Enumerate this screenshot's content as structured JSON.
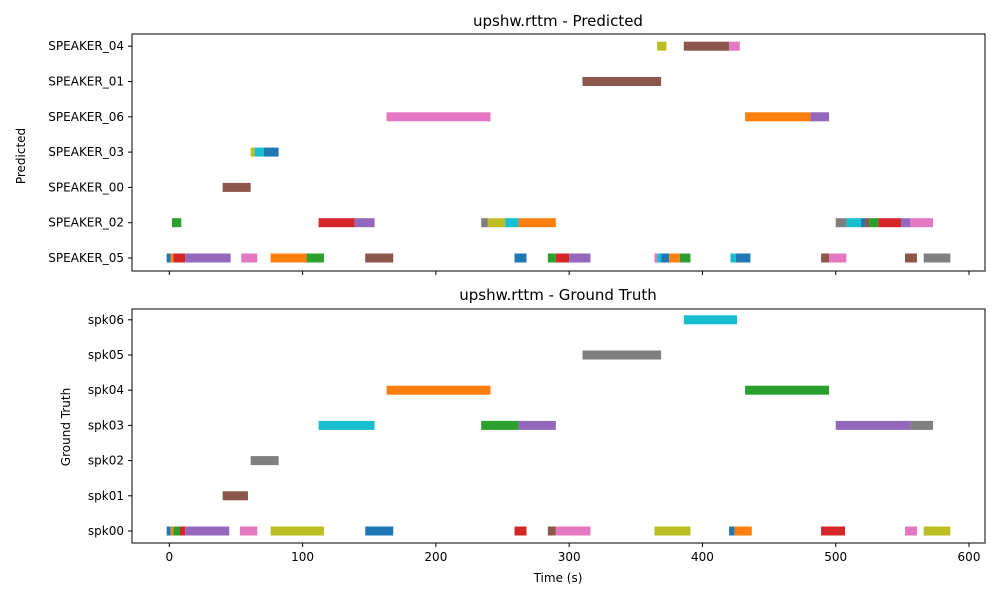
{
  "chart_data": [
    {
      "type": "broken_barh",
      "title": "upshw.rttm - Predicted",
      "ylabel": "Predicted",
      "xlabel": "",
      "xlim": [
        -28,
        612
      ],
      "xticks": [
        0,
        100,
        200,
        300,
        400,
        500,
        600
      ],
      "xticklabels_shown": false,
      "rows": [
        "SPEAKER_05",
        "SPEAKER_02",
        "SPEAKER_00",
        "SPEAKER_03",
        "SPEAKER_06",
        "SPEAKER_01",
        "SPEAKER_04"
      ],
      "segments": [
        {
          "row": "SPEAKER_05",
          "start": -2,
          "end": 1,
          "color": "#1f77b4"
        },
        {
          "row": "SPEAKER_05",
          "start": 1,
          "end": 3,
          "color": "#ff7f0e"
        },
        {
          "row": "SPEAKER_05",
          "start": 3,
          "end": 12,
          "color": "#d62728"
        },
        {
          "row": "SPEAKER_05",
          "start": 12,
          "end": 46,
          "color": "#9467bd"
        },
        {
          "row": "SPEAKER_05",
          "start": 54,
          "end": 66,
          "color": "#e377c2"
        },
        {
          "row": "SPEAKER_05",
          "start": 76,
          "end": 103,
          "color": "#ff7f0e"
        },
        {
          "row": "SPEAKER_05",
          "start": 103,
          "end": 116,
          "color": "#2ca02c"
        },
        {
          "row": "SPEAKER_05",
          "start": 147,
          "end": 168,
          "color": "#8c564b"
        },
        {
          "row": "SPEAKER_05",
          "start": 259,
          "end": 268,
          "color": "#1f77b4"
        },
        {
          "row": "SPEAKER_05",
          "start": 284,
          "end": 290,
          "color": "#2ca02c"
        },
        {
          "row": "SPEAKER_05",
          "start": 290,
          "end": 300,
          "color": "#d62728"
        },
        {
          "row": "SPEAKER_05",
          "start": 300,
          "end": 316,
          "color": "#9467bd"
        },
        {
          "row": "SPEAKER_05",
          "start": 364,
          "end": 366,
          "color": "#e377c2"
        },
        {
          "row": "SPEAKER_05",
          "start": 366,
          "end": 369,
          "color": "#17becf"
        },
        {
          "row": "SPEAKER_05",
          "start": 369,
          "end": 375,
          "color": "#1f77b4"
        },
        {
          "row": "SPEAKER_05",
          "start": 375,
          "end": 383,
          "color": "#ff7f0e"
        },
        {
          "row": "SPEAKER_05",
          "start": 383,
          "end": 391,
          "color": "#2ca02c"
        },
        {
          "row": "SPEAKER_05",
          "start": 421,
          "end": 425,
          "color": "#17becf"
        },
        {
          "row": "SPEAKER_05",
          "start": 425,
          "end": 436,
          "color": "#1f77b4"
        },
        {
          "row": "SPEAKER_05",
          "start": 489,
          "end": 495,
          "color": "#8c564b"
        },
        {
          "row": "SPEAKER_05",
          "start": 495,
          "end": 508,
          "color": "#e377c2"
        },
        {
          "row": "SPEAKER_05",
          "start": 552,
          "end": 561,
          "color": "#8c564b"
        },
        {
          "row": "SPEAKER_05",
          "start": 566,
          "end": 586,
          "color": "#7f7f7f"
        },
        {
          "row": "SPEAKER_02",
          "start": 2,
          "end": 9,
          "color": "#2ca02c"
        },
        {
          "row": "SPEAKER_02",
          "start": 112,
          "end": 139,
          "color": "#d62728"
        },
        {
          "row": "SPEAKER_02",
          "start": 139,
          "end": 154,
          "color": "#9467bd"
        },
        {
          "row": "SPEAKER_02",
          "start": 234,
          "end": 239,
          "color": "#7f7f7f"
        },
        {
          "row": "SPEAKER_02",
          "start": 239,
          "end": 252,
          "color": "#bcbd22"
        },
        {
          "row": "SPEAKER_02",
          "start": 252,
          "end": 262,
          "color": "#17becf"
        },
        {
          "row": "SPEAKER_02",
          "start": 262,
          "end": 290,
          "color": "#ff7f0e"
        },
        {
          "row": "SPEAKER_02",
          "start": 500,
          "end": 508,
          "color": "#7f7f7f"
        },
        {
          "row": "SPEAKER_02",
          "start": 508,
          "end": 519,
          "color": "#17becf"
        },
        {
          "row": "SPEAKER_02",
          "start": 519,
          "end": 522,
          "color": "#1f77b4"
        },
        {
          "row": "SPEAKER_02",
          "start": 522,
          "end": 525,
          "color": "#8c564b"
        },
        {
          "row": "SPEAKER_02",
          "start": 525,
          "end": 532,
          "color": "#2ca02c"
        },
        {
          "row": "SPEAKER_02",
          "start": 532,
          "end": 549,
          "color": "#d62728"
        },
        {
          "row": "SPEAKER_02",
          "start": 549,
          "end": 556,
          "color": "#9467bd"
        },
        {
          "row": "SPEAKER_02",
          "start": 556,
          "end": 573,
          "color": "#e377c2"
        },
        {
          "row": "SPEAKER_00",
          "start": 40,
          "end": 61,
          "color": "#8c564b"
        },
        {
          "row": "SPEAKER_03",
          "start": 61,
          "end": 64,
          "color": "#bcbd22"
        },
        {
          "row": "SPEAKER_03",
          "start": 64,
          "end": 71,
          "color": "#17becf"
        },
        {
          "row": "SPEAKER_03",
          "start": 71,
          "end": 82,
          "color": "#1f77b4"
        },
        {
          "row": "SPEAKER_06",
          "start": 163,
          "end": 241,
          "color": "#e377c2"
        },
        {
          "row": "SPEAKER_06",
          "start": 432,
          "end": 481,
          "color": "#ff7f0e"
        },
        {
          "row": "SPEAKER_06",
          "start": 481,
          "end": 495,
          "color": "#9467bd"
        },
        {
          "row": "SPEAKER_01",
          "start": 310,
          "end": 369,
          "color": "#8c564b"
        },
        {
          "row": "SPEAKER_04",
          "start": 366,
          "end": 373,
          "color": "#bcbd22"
        },
        {
          "row": "SPEAKER_04",
          "start": 386,
          "end": 420,
          "color": "#8c564b"
        },
        {
          "row": "SPEAKER_04",
          "start": 420,
          "end": 428,
          "color": "#e377c2"
        }
      ]
    },
    {
      "type": "broken_barh",
      "title": "upshw.rttm - Ground Truth",
      "ylabel": "Ground Truth",
      "xlabel": "Time (s)",
      "xlim": [
        -28,
        612
      ],
      "xticks": [
        0,
        100,
        200,
        300,
        400,
        500,
        600
      ],
      "xticklabels_shown": true,
      "rows": [
        "spk00",
        "spk01",
        "spk02",
        "spk03",
        "spk04",
        "spk05",
        "spk06"
      ],
      "segments": [
        {
          "row": "spk00",
          "start": -2,
          "end": 1,
          "color": "#1f77b4"
        },
        {
          "row": "spk00",
          "start": 1,
          "end": 3,
          "color": "#ff7f0e"
        },
        {
          "row": "spk00",
          "start": 3,
          "end": 8,
          "color": "#2ca02c"
        },
        {
          "row": "spk00",
          "start": 8,
          "end": 12,
          "color": "#d62728"
        },
        {
          "row": "spk00",
          "start": 12,
          "end": 45,
          "color": "#9467bd"
        },
        {
          "row": "spk00",
          "start": 53,
          "end": 66,
          "color": "#e377c2"
        },
        {
          "row": "spk00",
          "start": 76,
          "end": 116,
          "color": "#bcbd22"
        },
        {
          "row": "spk00",
          "start": 147,
          "end": 168,
          "color": "#1f77b4"
        },
        {
          "row": "spk00",
          "start": 259,
          "end": 268,
          "color": "#d62728"
        },
        {
          "row": "spk00",
          "start": 284,
          "end": 290,
          "color": "#8c564b"
        },
        {
          "row": "spk00",
          "start": 290,
          "end": 316,
          "color": "#e377c2"
        },
        {
          "row": "spk00",
          "start": 364,
          "end": 391,
          "color": "#bcbd22"
        },
        {
          "row": "spk00",
          "start": 420,
          "end": 424,
          "color": "#1f77b4"
        },
        {
          "row": "spk00",
          "start": 424,
          "end": 437,
          "color": "#ff7f0e"
        },
        {
          "row": "spk00",
          "start": 489,
          "end": 507,
          "color": "#d62728"
        },
        {
          "row": "spk00",
          "start": 552,
          "end": 561,
          "color": "#e377c2"
        },
        {
          "row": "spk00",
          "start": 566,
          "end": 586,
          "color": "#bcbd22"
        },
        {
          "row": "spk01",
          "start": 40,
          "end": 59,
          "color": "#8c564b"
        },
        {
          "row": "spk02",
          "start": 61,
          "end": 82,
          "color": "#7f7f7f"
        },
        {
          "row": "spk03",
          "start": 112,
          "end": 154,
          "color": "#17becf"
        },
        {
          "row": "spk03",
          "start": 234,
          "end": 262,
          "color": "#2ca02c"
        },
        {
          "row": "spk03",
          "start": 262,
          "end": 290,
          "color": "#9467bd"
        },
        {
          "row": "spk03",
          "start": 500,
          "end": 556,
          "color": "#9467bd"
        },
        {
          "row": "spk03",
          "start": 556,
          "end": 573,
          "color": "#7f7f7f"
        },
        {
          "row": "spk04",
          "start": 163,
          "end": 241,
          "color": "#ff7f0e"
        },
        {
          "row": "spk04",
          "start": 432,
          "end": 495,
          "color": "#2ca02c"
        },
        {
          "row": "spk05",
          "start": 310,
          "end": 369,
          "color": "#7f7f7f"
        },
        {
          "row": "spk06",
          "start": 386,
          "end": 426,
          "color": "#17becf"
        }
      ]
    }
  ]
}
